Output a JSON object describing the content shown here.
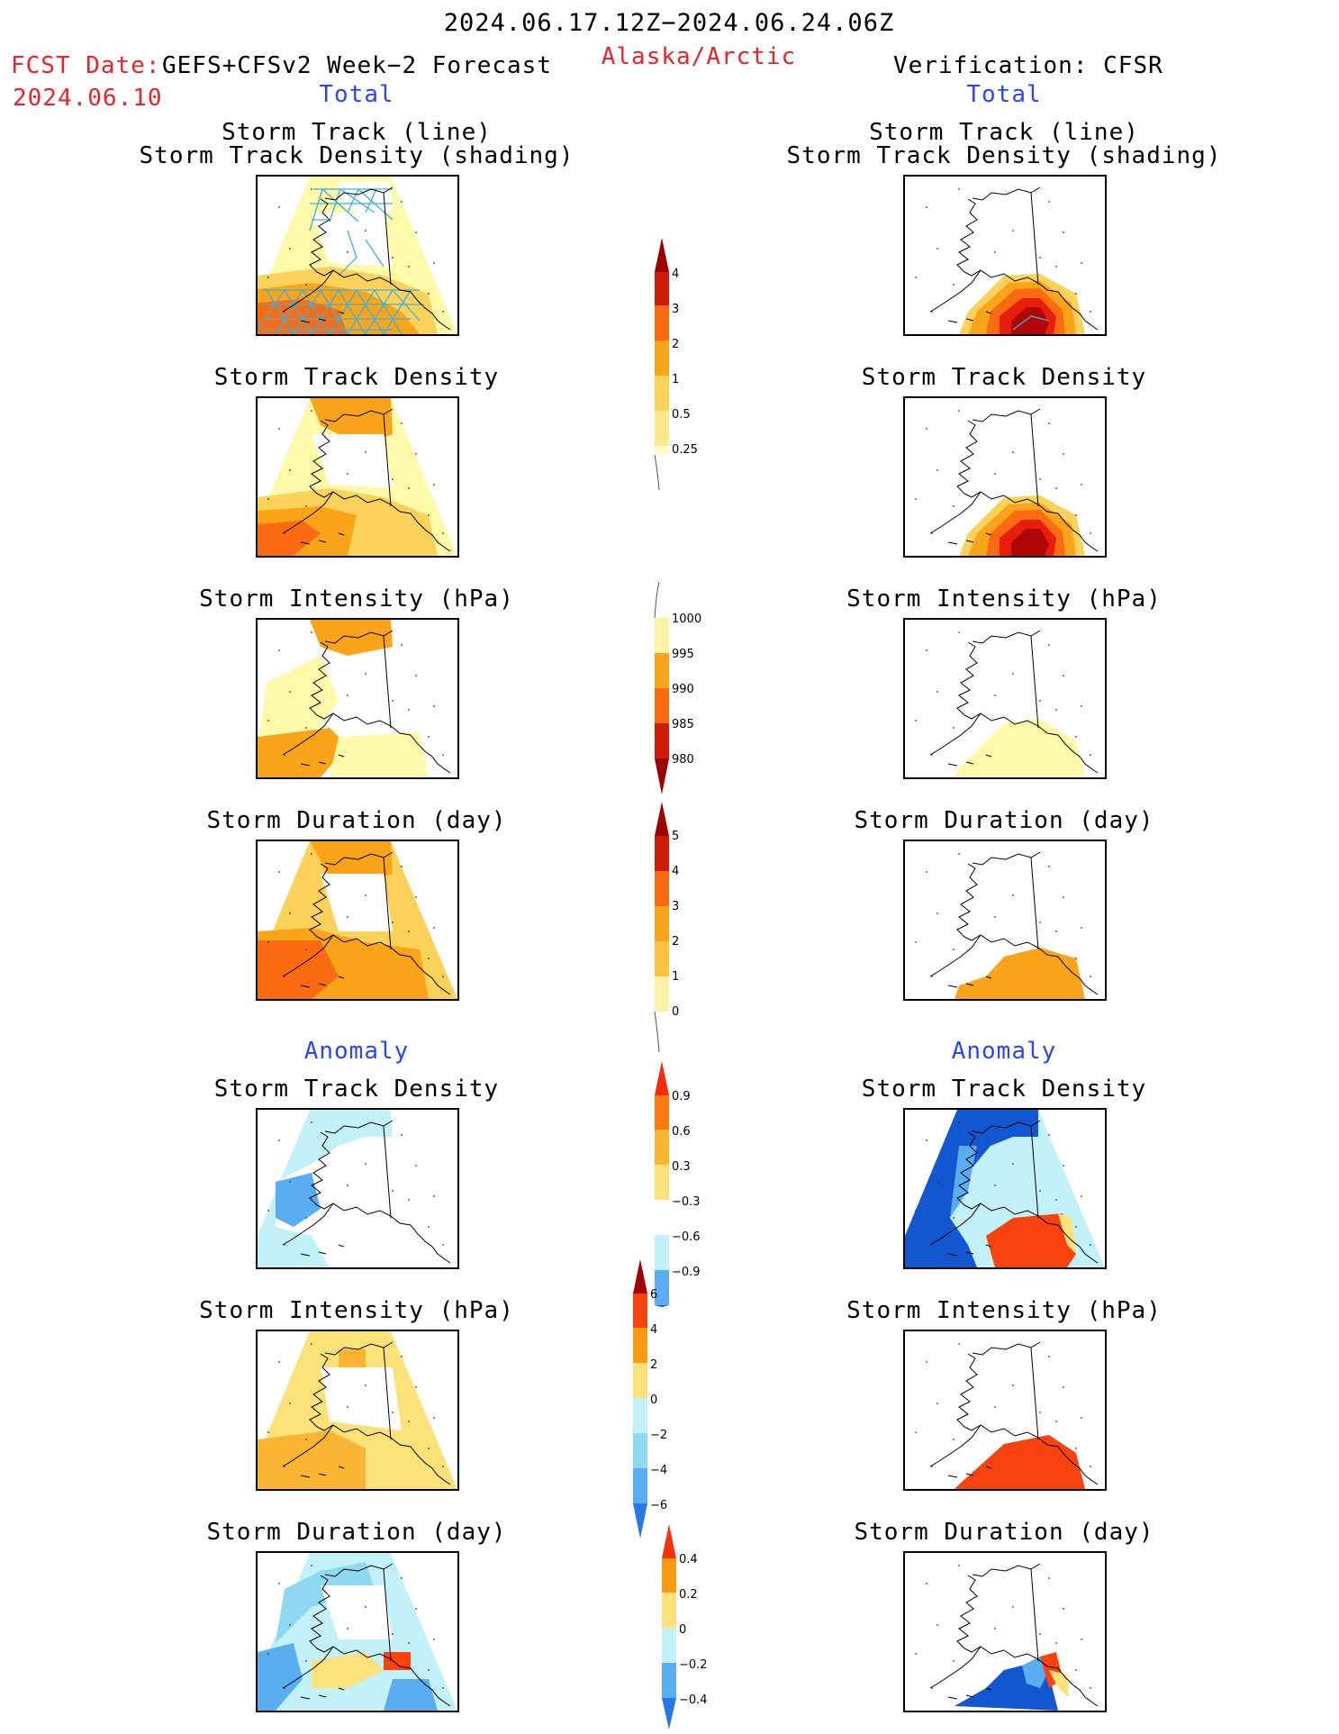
{
  "header": {
    "period": "2024.06.17.12Z−2024.06.24.06Z",
    "region": "Alaska/Arctic",
    "fcst_label": "FCST Date:",
    "fcst_model": "GEFS+CFSv2 Week−2 Forecast",
    "fcst_date": "2024.06.10",
    "verification": "Verification: CFSR"
  },
  "sections": {
    "total": "Total",
    "anomaly": "Anomaly"
  },
  "panel_titles": {
    "track_line": "Storm Track (line)",
    "track_density_shading": "Storm Track Density (shading)",
    "track_density": "Storm Track Density",
    "intensity": "Storm Intensity (hPa)",
    "duration": "Storm Duration (day)"
  },
  "colorbars": {
    "density": [
      "4",
      "3",
      "2",
      "1",
      "0.5",
      "0.25"
    ],
    "intensity": [
      "1000",
      "995",
      "990",
      "985",
      "980"
    ],
    "duration": [
      "5",
      "4",
      "3",
      "2",
      "1",
      "0"
    ],
    "density_anom": [
      "0.9",
      "0.6",
      "0.3",
      "−0.3",
      "−0.6",
      "−0.9"
    ],
    "intensity_anom": [
      "6",
      "4",
      "2",
      "0",
      "−2",
      "−4",
      "−6"
    ],
    "duration_anom": [
      "0.4",
      "0.2",
      "0",
      "−0.2",
      "−0.4"
    ]
  },
  "colors": {
    "warm": [
      "#fffaaa",
      "#fcd25a",
      "#faa419",
      "#fb6b12",
      "#e81d0c",
      "#b10606"
    ],
    "anom_warm": [
      "#fde27a",
      "#fcb532",
      "#fb8a0f",
      "#f8420f"
    ],
    "anom_cool": [
      "#c2f1f8",
      "#8ed8f2",
      "#59adf0",
      "#2777e5",
      "#1256d0"
    ],
    "title_red": "#e8242a",
    "title_blue": "#2a45ff"
  }
}
